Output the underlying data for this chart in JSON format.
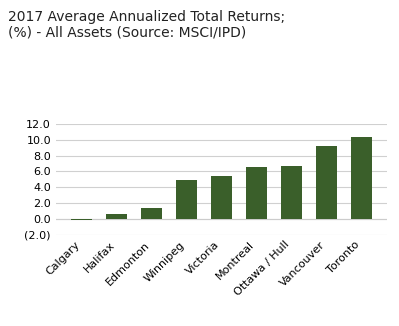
{
  "title": "2017 Average Annualized Total Returns;\n(%) - All Assets (Source: MSCI/IPD)",
  "categories": [
    "Calgary",
    "Halifax",
    "Edmonton",
    "Winnipeg",
    "Victoria",
    "Montreal",
    "Ottawa / Hull",
    "Vancouver",
    "Toronto"
  ],
  "values": [
    -0.2,
    0.6,
    1.35,
    4.9,
    5.45,
    6.55,
    6.65,
    9.25,
    10.35
  ],
  "bar_color": "#3a5f2a",
  "ylim": [
    -2.0,
    12.0
  ],
  "yticks": [
    -2.0,
    0.0,
    2.0,
    4.0,
    6.0,
    8.0,
    10.0,
    12.0
  ],
  "ytick_labels": [
    "(2.0)",
    "0.0",
    "2.0",
    "4.0",
    "6.0",
    "8.0",
    "10.0",
    "12.0"
  ],
  "title_fontsize": 10,
  "tick_fontsize": 8,
  "background_color": "#ffffff",
  "figsize": [
    3.99,
    3.26
  ],
  "dpi": 100
}
